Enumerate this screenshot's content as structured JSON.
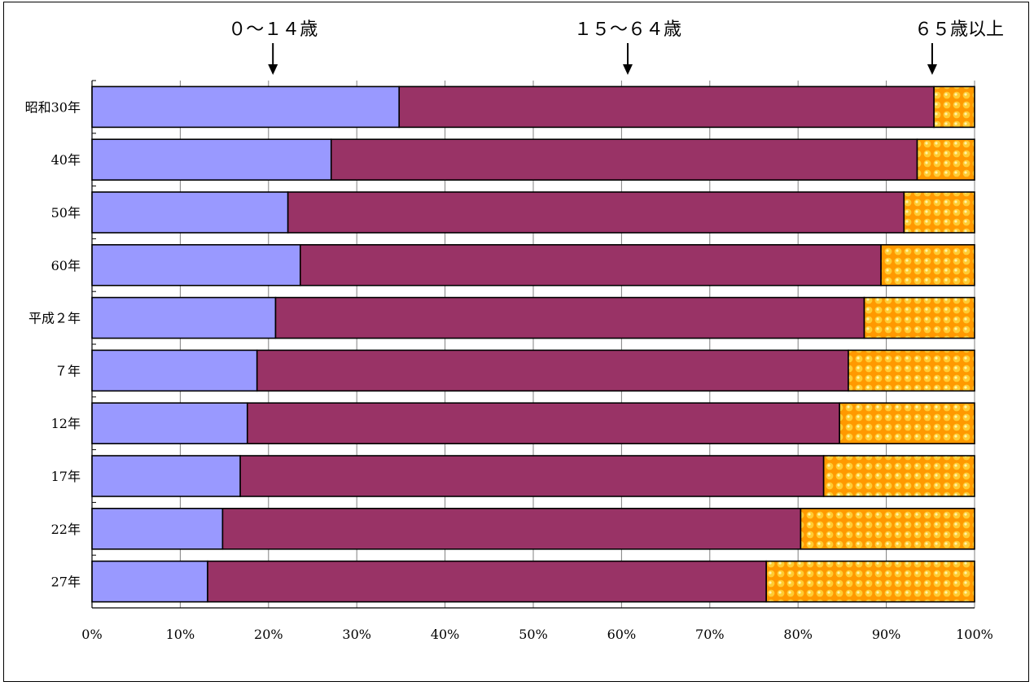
{
  "chart_data": {
    "type": "bar",
    "orientation": "horizontal",
    "stacked": true,
    "normalized": true,
    "categories": [
      "昭和30年",
      "40年",
      "50年",
      "60年",
      "平成２年",
      "７年",
      "12年",
      "17年",
      "22年",
      "27年"
    ],
    "series": [
      {
        "name": "０～１４歳",
        "values": [
          34.8,
          27.1,
          22.2,
          23.6,
          20.8,
          18.7,
          17.6,
          16.8,
          14.8,
          13.1
        ]
      },
      {
        "name": "１５～６４歳",
        "values": [
          60.6,
          66.4,
          69.8,
          65.8,
          66.7,
          67.0,
          67.1,
          66.1,
          65.5,
          63.3
        ]
      },
      {
        "name": "６５歳以上",
        "values": [
          4.6,
          6.5,
          8.0,
          10.6,
          12.5,
          14.3,
          15.3,
          17.1,
          19.7,
          23.6
        ]
      }
    ],
    "x_ticks": [
      "0%",
      "10%",
      "20%",
      "30%",
      "40%",
      "50%",
      "60%",
      "70%",
      "80%",
      "90%",
      "100%"
    ],
    "xlim": [
      0,
      100
    ],
    "grid": true,
    "legend_placement": "top-arrows",
    "colors": {
      "s0": "#9999ff",
      "s1": "#993366",
      "s2": "#ff9900",
      "s2_dots": "#ffcc33"
    }
  }
}
